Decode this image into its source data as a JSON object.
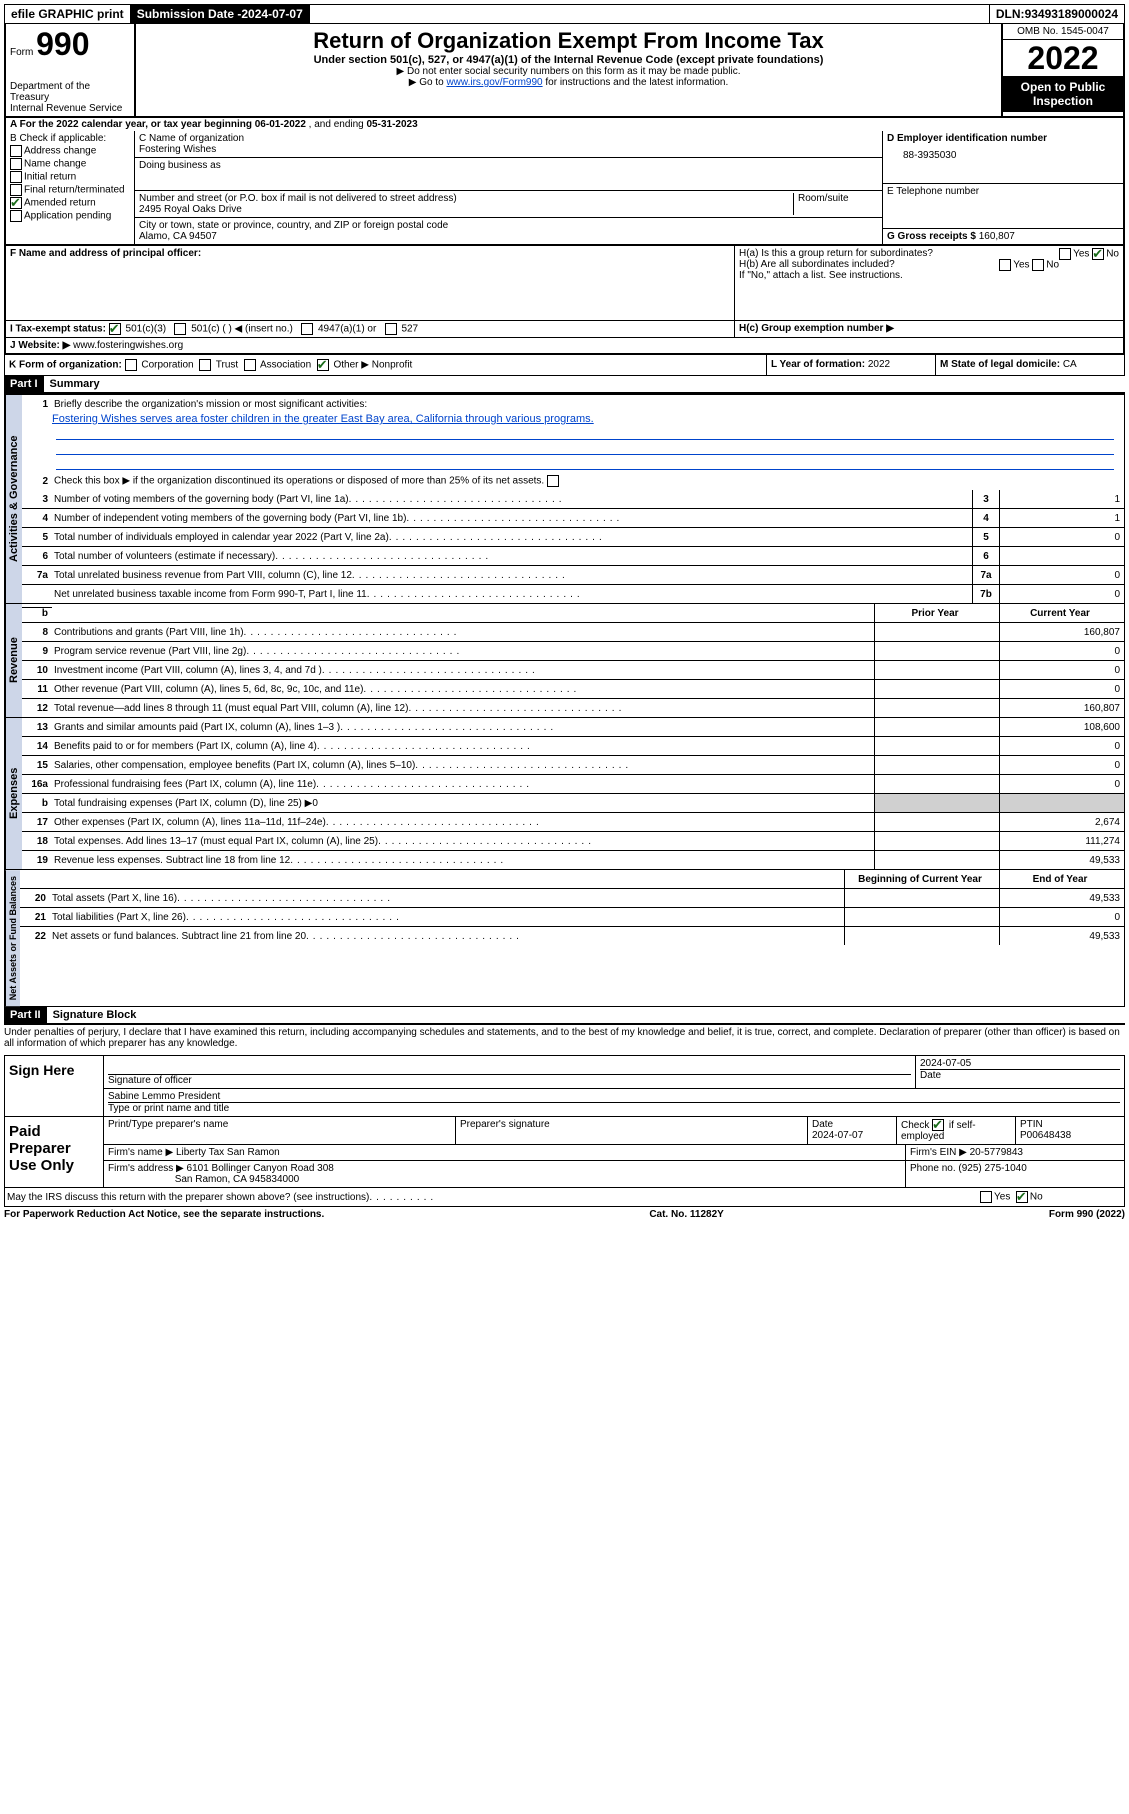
{
  "topbar": {
    "efile": "efile GRAPHIC print",
    "submission_label": "Submission Date - ",
    "submission_date": "2024-07-07",
    "dln_label": "DLN: ",
    "dln": "93493189000024"
  },
  "header": {
    "form_word": "Form",
    "form_number": "990",
    "title": "Return of Organization Exempt From Income Tax",
    "subtitle": "Under section 501(c), 527, or 4947(a)(1) of the Internal Revenue Code (except private foundations)",
    "hint1": "Do not enter social security numbers on this form as it may be made public.",
    "hint2a": "Go to ",
    "hint2_link": "www.irs.gov/Form990",
    "hint2b": " for instructions and the latest information.",
    "dept": "Department of the Treasury",
    "irs": "Internal Revenue Service",
    "omb": "OMB No. 1545-0047",
    "year": "2022",
    "open": "Open to Public Inspection"
  },
  "rowA": {
    "prefix": "A For the 2022 calendar year, or tax year beginning ",
    "begin": "06-01-2022",
    "mid": " , and ending ",
    "end": "05-31-2023"
  },
  "B": {
    "label": "B Check if applicable:",
    "items": [
      {
        "label": "Address change",
        "checked": false
      },
      {
        "label": "Name change",
        "checked": false
      },
      {
        "label": "Initial return",
        "checked": false
      },
      {
        "label": "Final return/terminated",
        "checked": false
      },
      {
        "label": "Amended return",
        "checked": true
      },
      {
        "label": "Application pending",
        "checked": false
      }
    ]
  },
  "C": {
    "name_label": "C Name of organization",
    "name": "Fostering Wishes",
    "dba_label": "Doing business as",
    "dba": "",
    "addr_label": "Number and street (or P.O. box if mail is not delivered to street address)",
    "room_label": "Room/suite",
    "addr": "2495 Royal Oaks Drive",
    "city_label": "City or town, state or province, country, and ZIP or foreign postal code",
    "city": "Alamo, CA  94507"
  },
  "D": {
    "label": "D Employer identification number",
    "value": "88-3935030"
  },
  "E": {
    "label": "E Telephone number",
    "value": ""
  },
  "G": {
    "label": "G Gross receipts $",
    "value": "160,807"
  },
  "F": {
    "label": "F  Name and address of principal officer:",
    "value": ""
  },
  "H": {
    "ha": "H(a)  Is this a group return for subordinates?",
    "hb": "H(b)  Are all subordinates included?",
    "hb_note": "If \"No,\" attach a list. See instructions.",
    "hc": "H(c)  Group exemption number ▶",
    "yes": "Yes",
    "no": "No"
  },
  "I": {
    "label": "I    Tax-exempt status:",
    "opts": [
      "501(c)(3)",
      "501(c) (  ) ◀ (insert no.)",
      "4947(a)(1) or",
      "527"
    ]
  },
  "J": {
    "label": "J   Website: ▶",
    "value": "www.fosteringwishes.org"
  },
  "K": {
    "label": "K Form of organization:",
    "opts": [
      "Corporation",
      "Trust",
      "Association",
      "Other ▶"
    ],
    "other_val": "Nonprofit"
  },
  "L": {
    "label": "L Year of formation: ",
    "value": "2022"
  },
  "M": {
    "label": "M State of legal domicile: ",
    "value": "CA"
  },
  "partI": {
    "num": "Part I",
    "title": "Summary"
  },
  "summary": {
    "line1_label": "Briefly describe the organization's mission or most significant activities:",
    "line1_text": "Fostering Wishes serves area foster children in the greater East Bay area, California through various programs.",
    "line2": "Check this box ▶        if the organization discontinued its operations or disposed of more than 25% of its net assets.",
    "lines_gov": [
      {
        "n": "3",
        "t": "Number of voting members of the governing body (Part VI, line 1a)",
        "box": "3",
        "v": "1"
      },
      {
        "n": "4",
        "t": "Number of independent voting members of the governing body (Part VI, line 1b)",
        "box": "4",
        "v": "1"
      },
      {
        "n": "5",
        "t": "Total number of individuals employed in calendar year 2022 (Part V, line 2a)",
        "box": "5",
        "v": "0"
      },
      {
        "n": "6",
        "t": "Total number of volunteers (estimate if necessary)",
        "box": "6",
        "v": ""
      },
      {
        "n": "7a",
        "t": "Total unrelated business revenue from Part VIII, column (C), line 12",
        "box": "7a",
        "v": "0"
      },
      {
        "n": "",
        "t": "Net unrelated business taxable income from Form 990-T, Part I, line 11",
        "box": "7b",
        "v": "0"
      }
    ],
    "head_prior": "Prior Year",
    "head_current": "Current Year",
    "lines_rev": [
      {
        "n": "8",
        "t": "Contributions and grants (Part VIII, line 1h)",
        "p": "",
        "c": "160,807"
      },
      {
        "n": "9",
        "t": "Program service revenue (Part VIII, line 2g)",
        "p": "",
        "c": "0"
      },
      {
        "n": "10",
        "t": "Investment income (Part VIII, column (A), lines 3, 4, and 7d )",
        "p": "",
        "c": "0"
      },
      {
        "n": "11",
        "t": "Other revenue (Part VIII, column (A), lines 5, 6d, 8c, 9c, 10c, and 11e)",
        "p": "",
        "c": "0"
      },
      {
        "n": "12",
        "t": "Total revenue—add lines 8 through 11 (must equal Part VIII, column (A), line 12)",
        "p": "",
        "c": "160,807"
      }
    ],
    "lines_exp": [
      {
        "n": "13",
        "t": "Grants and similar amounts paid (Part IX, column (A), lines 1–3 )",
        "p": "",
        "c": "108,600"
      },
      {
        "n": "14",
        "t": "Benefits paid to or for members (Part IX, column (A), line 4)",
        "p": "",
        "c": "0"
      },
      {
        "n": "15",
        "t": "Salaries, other compensation, employee benefits (Part IX, column (A), lines 5–10)",
        "p": "",
        "c": "0"
      },
      {
        "n": "16a",
        "t": "Professional fundraising fees (Part IX, column (A), line 11e)",
        "p": "",
        "c": "0"
      },
      {
        "n": "b",
        "t": "Total fundraising expenses (Part IX, column (D), line 25) ▶0",
        "p": null,
        "c": null
      },
      {
        "n": "17",
        "t": "Other expenses (Part IX, column (A), lines 11a–11d, 11f–24e)",
        "p": "",
        "c": "2,674"
      },
      {
        "n": "18",
        "t": "Total expenses. Add lines 13–17 (must equal Part IX, column (A), line 25)",
        "p": "",
        "c": "111,274"
      },
      {
        "n": "19",
        "t": "Revenue less expenses. Subtract line 18 from line 12",
        "p": "",
        "c": "49,533"
      }
    ],
    "head_begin": "Beginning of Current Year",
    "head_end": "End of Year",
    "lines_net": [
      {
        "n": "20",
        "t": "Total assets (Part X, line 16)",
        "p": "",
        "c": "49,533"
      },
      {
        "n": "21",
        "t": "Total liabilities (Part X, line 26)",
        "p": "",
        "c": "0"
      },
      {
        "n": "22",
        "t": "Net assets or fund balances. Subtract line 21 from line 20",
        "p": "",
        "c": "49,533"
      }
    ]
  },
  "vtabs": {
    "gov": "Activities & Governance",
    "rev": "Revenue",
    "exp": "Expenses",
    "net": "Net Assets or Fund Balances"
  },
  "partII": {
    "num": "Part II",
    "title": "Signature Block"
  },
  "declaration": "Under penalties of perjury, I declare that I have examined this return, including accompanying schedules and statements, and to the best of my knowledge and belief, it is true, correct, and complete. Declaration of preparer (other than officer) is based on all information of which preparer has any knowledge.",
  "sign": {
    "label": "Sign Here",
    "sig_officer": "Signature of officer",
    "date_label": "Date",
    "date": "2024-07-05",
    "name": "Sabine Lemmo  President",
    "name_label": "Type or print name and title"
  },
  "preparer": {
    "label": "Paid Preparer Use Only",
    "print_label": "Print/Type preparer's name",
    "sig_label": "Preparer's signature",
    "date_label": "Date",
    "date": "2024-07-07",
    "check_label": "Check         if self-employed",
    "ptin_label": "PTIN",
    "ptin": "P00648438",
    "firm_name_label": "Firm's name     ▶",
    "firm_name": "Liberty Tax San Ramon",
    "firm_ein_label": "Firm's EIN ▶",
    "firm_ein": "20-5779843",
    "firm_addr_label": "Firm's address ▶",
    "firm_addr1": "6101 Bollinger Canyon Road 308",
    "firm_addr2": "San Ramon, CA  945834000",
    "phone_label": "Phone no. ",
    "phone": "(925) 275-1040"
  },
  "may_discuss": "May the IRS discuss this return with the preparer shown above? (see instructions)",
  "footer": {
    "left": "For Paperwork Reduction Act Notice, see the separate instructions.",
    "mid": "Cat. No. 11282Y",
    "right_a": "Form ",
    "right_b": "990",
    "right_c": " (2022)"
  }
}
